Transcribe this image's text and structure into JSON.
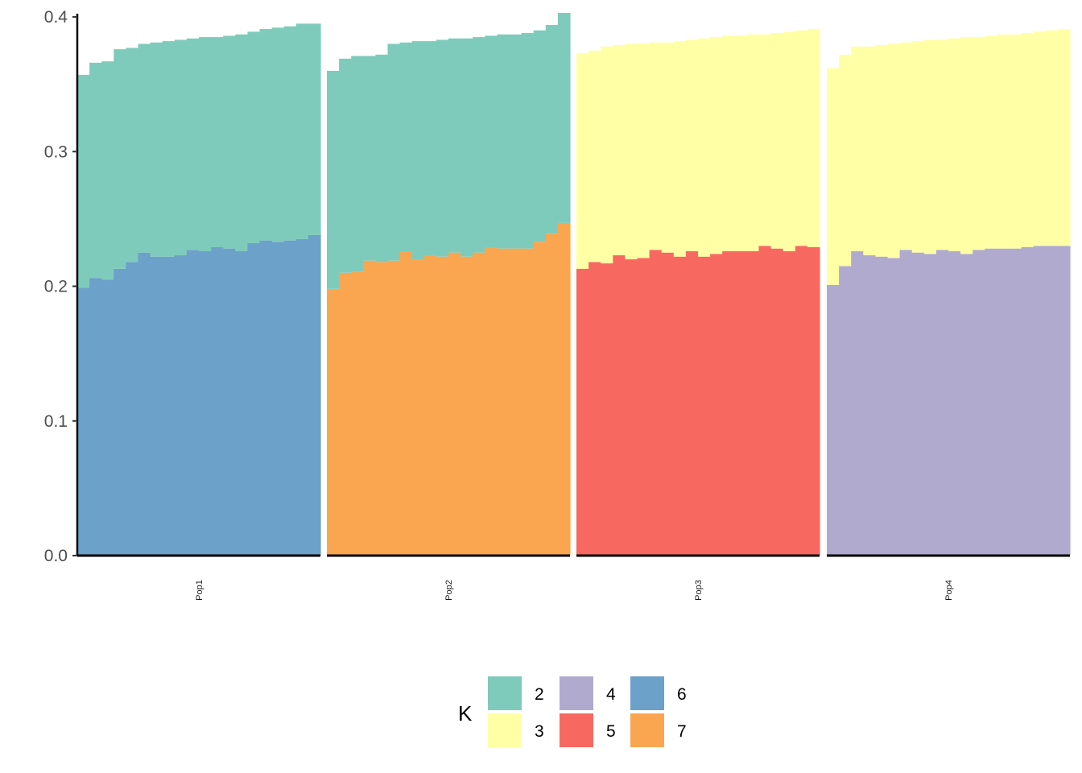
{
  "chart_data": {
    "type": "bar",
    "stacked": true,
    "ylim": [
      0,
      0.4
    ],
    "yticks": [
      "0.0",
      "0.1",
      "0.2",
      "0.3",
      "0.4"
    ],
    "ytick_values": [
      0,
      0.1,
      0.2,
      0.3,
      0.4
    ],
    "xlabel": "",
    "ylabel": "",
    "legend": {
      "title": "K",
      "position": "bottom",
      "keys": [
        "2",
        "3",
        "4",
        "5",
        "6",
        "7"
      ]
    },
    "colors": {
      "2": "#7fcbbb",
      "3": "#ffffa6",
      "4": "#b0aacf",
      "5": "#f76960",
      "6": "#6ca1c9",
      "7": "#faa650"
    },
    "panels": [
      {
        "name": "Pop1",
        "primary": "6",
        "secondary": "2",
        "primary_values": [
          0.199,
          0.206,
          0.205,
          0.213,
          0.218,
          0.225,
          0.222,
          0.222,
          0.223,
          0.227,
          0.226,
          0.229,
          0.228,
          0.226,
          0.232,
          0.234,
          0.233,
          0.234,
          0.235,
          0.238
        ],
        "totals": [
          0.357,
          0.366,
          0.367,
          0.376,
          0.377,
          0.38,
          0.381,
          0.382,
          0.383,
          0.384,
          0.385,
          0.385,
          0.386,
          0.387,
          0.389,
          0.391,
          0.392,
          0.393,
          0.395,
          0.395
        ]
      },
      {
        "name": "Pop2",
        "primary": "7",
        "secondary": "2",
        "primary_values": [
          0.198,
          0.21,
          0.211,
          0.219,
          0.218,
          0.219,
          0.226,
          0.22,
          0.223,
          0.222,
          0.225,
          0.222,
          0.225,
          0.229,
          0.228,
          0.228,
          0.228,
          0.233,
          0.239,
          0.247
        ],
        "totals": [
          0.36,
          0.369,
          0.371,
          0.371,
          0.372,
          0.38,
          0.381,
          0.382,
          0.382,
          0.383,
          0.384,
          0.384,
          0.385,
          0.386,
          0.387,
          0.387,
          0.388,
          0.39,
          0.394,
          0.403
        ]
      },
      {
        "name": "Pop3",
        "primary": "5",
        "secondary": "3",
        "primary_values": [
          0.213,
          0.218,
          0.217,
          0.223,
          0.22,
          0.221,
          0.227,
          0.225,
          0.222,
          0.226,
          0.222,
          0.224,
          0.226,
          0.226,
          0.226,
          0.23,
          0.228,
          0.226,
          0.23,
          0.229
        ],
        "totals": [
          0.373,
          0.375,
          0.378,
          0.379,
          0.38,
          0.38,
          0.381,
          0.381,
          0.382,
          0.383,
          0.384,
          0.385,
          0.386,
          0.386,
          0.387,
          0.387,
          0.388,
          0.389,
          0.39,
          0.391
        ]
      },
      {
        "name": "Pop4",
        "primary": "4",
        "secondary": "3",
        "primary_values": [
          0.201,
          0.215,
          0.226,
          0.223,
          0.222,
          0.221,
          0.227,
          0.225,
          0.224,
          0.227,
          0.226,
          0.224,
          0.227,
          0.228,
          0.228,
          0.228,
          0.229,
          0.23,
          0.23,
          0.23
        ],
        "totals": [
          0.362,
          0.372,
          0.378,
          0.378,
          0.379,
          0.38,
          0.381,
          0.382,
          0.383,
          0.383,
          0.384,
          0.385,
          0.385,
          0.386,
          0.387,
          0.387,
          0.388,
          0.389,
          0.39,
          0.391
        ]
      }
    ]
  }
}
